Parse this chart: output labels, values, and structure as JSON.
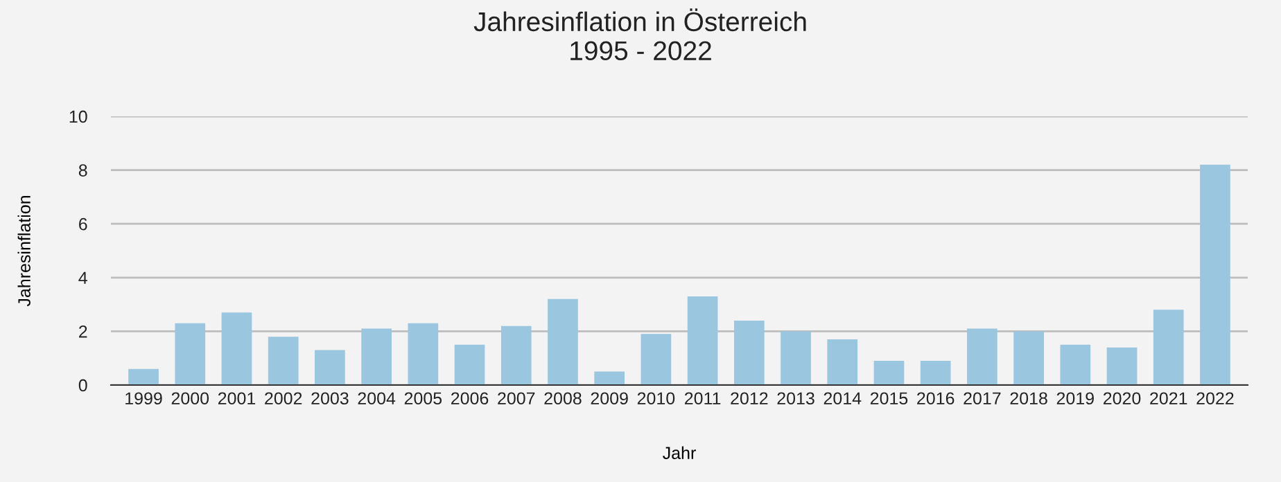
{
  "chart_data": {
    "type": "bar",
    "title": "Jahresinflation in Österreich\n1995 - 2022",
    "xlabel": "Jahr",
    "ylabel": "Jahresinflation",
    "categories": [
      "1999",
      "2000",
      "2001",
      "2002",
      "2003",
      "2004",
      "2005",
      "2006",
      "2007",
      "2008",
      "2009",
      "2010",
      "2011",
      "2012",
      "2013",
      "2014",
      "2015",
      "2016",
      "2017",
      "2018",
      "2019",
      "2020",
      "2021",
      "2022"
    ],
    "values": [
      0.6,
      2.3,
      2.7,
      1.8,
      1.3,
      2.1,
      2.3,
      1.5,
      2.2,
      3.2,
      0.5,
      1.9,
      3.3,
      2.4,
      2.0,
      1.7,
      0.9,
      0.9,
      2.1,
      2.0,
      1.5,
      1.4,
      2.8,
      8.2
    ],
    "color": "#9ac6e0",
    "ylim": [
      0,
      10
    ],
    "yticks": [
      0,
      2,
      4,
      6,
      8,
      10
    ],
    "grid": "y",
    "legend": false
  }
}
